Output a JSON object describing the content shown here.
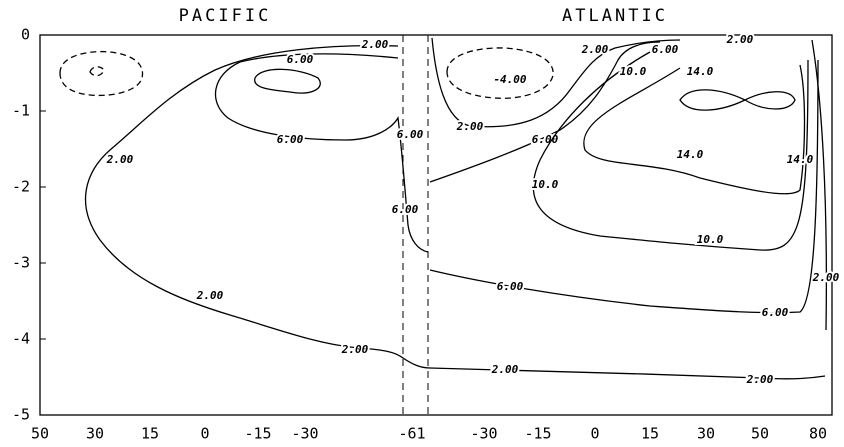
{
  "chart_data": {
    "type": "contour",
    "annotations": [
      "PACIFIC",
      "ATLANTIC"
    ],
    "x_tick_labels": [
      "50",
      "30",
      "15",
      "0",
      "-15",
      "-30",
      "-61",
      "-30",
      "-15",
      "0",
      "15",
      "30",
      "50",
      "80"
    ],
    "ylim": [
      -5,
      0
    ],
    "yticks": [
      0,
      -1,
      -2,
      -3,
      -4,
      -5
    ],
    "contours": [
      {
        "level": -4,
        "label": "-4.00"
      },
      {
        "level": 2,
        "label": "2.00"
      },
      {
        "level": 6,
        "label": "6.00"
      },
      {
        "level": 10,
        "label": "10.0"
      },
      {
        "level": 14,
        "label": "14.0"
      }
    ]
  }
}
